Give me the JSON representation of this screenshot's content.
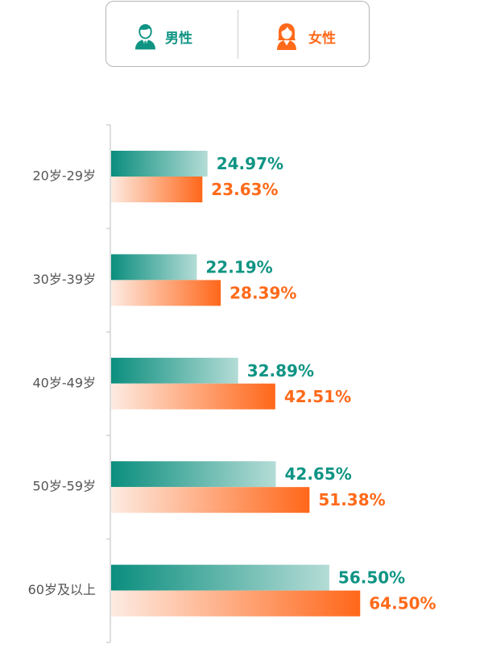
{
  "chart_data": {
    "type": "bar",
    "orientation": "horizontal",
    "categories": [
      "20岁-29岁",
      "30岁-39岁",
      "40岁-49岁",
      "50岁-59岁",
      "60岁及以上"
    ],
    "series": [
      {
        "name": "男性",
        "icon": "male-user-icon",
        "color": "#0f9484",
        "gradient": [
          "#0b8e7e",
          "#b4dcd6"
        ],
        "values": [
          24.97,
          22.19,
          32.89,
          42.65,
          56.5
        ],
        "labels": [
          "24.97%",
          "22.19%",
          "32.89%",
          "42.65%",
          "56.50%"
        ]
      },
      {
        "name": "女性",
        "icon": "female-user-icon",
        "color": "#ff6a1a",
        "gradient": [
          "#fdebe2",
          "#ff671a"
        ],
        "values": [
          23.63,
          28.39,
          42.51,
          51.38,
          64.5
        ],
        "labels": [
          "23.63%",
          "28.39%",
          "42.51%",
          "51.38%",
          "64.50%"
        ]
      }
    ],
    "grid": false,
    "legend": "top"
  }
}
